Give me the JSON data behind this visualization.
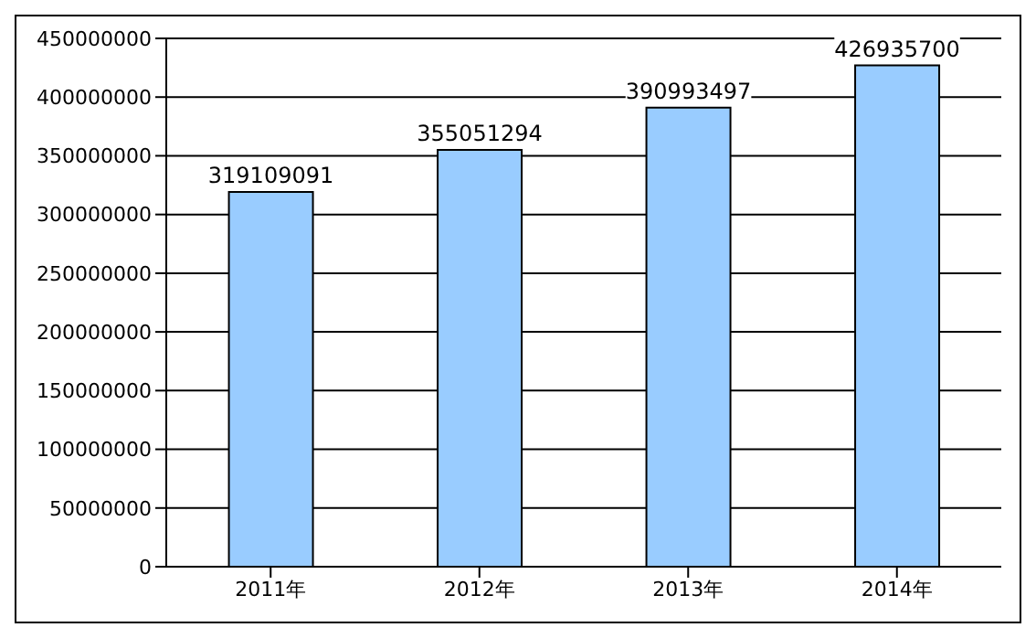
{
  "chart_data": {
    "type": "bar",
    "categories": [
      "2011年",
      "2012年",
      "2013年",
      "2014年"
    ],
    "values": [
      319109091,
      355051294,
      390993497,
      426935700
    ],
    "color": "#99ccff",
    "ylim": [
      0,
      450000000
    ],
    "yticks": [
      0,
      50000000,
      100000000,
      150000000,
      200000000,
      250000000,
      300000000,
      350000000,
      400000000,
      450000000
    ],
    "grid": "y",
    "data_labels": true
  }
}
